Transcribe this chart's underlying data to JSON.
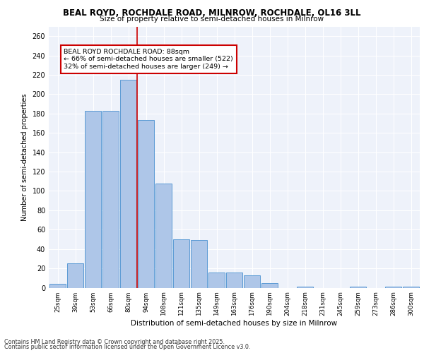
{
  "title1": "BEAL ROYD, ROCHDALE ROAD, MILNROW, ROCHDALE, OL16 3LL",
  "title2": "Size of property relative to semi-detached houses in Milnrow",
  "xlabel": "Distribution of semi-detached houses by size in Milnrow",
  "ylabel": "Number of semi-detached properties",
  "categories": [
    "25sqm",
    "39sqm",
    "53sqm",
    "66sqm",
    "80sqm",
    "94sqm",
    "108sqm",
    "121sqm",
    "135sqm",
    "149sqm",
    "163sqm",
    "176sqm",
    "190sqm",
    "204sqm",
    "218sqm",
    "231sqm",
    "245sqm",
    "259sqm",
    "273sqm",
    "286sqm",
    "300sqm"
  ],
  "values": [
    4,
    25,
    183,
    183,
    215,
    173,
    108,
    50,
    49,
    16,
    16,
    13,
    5,
    0,
    1,
    0,
    0,
    1,
    0,
    1,
    1
  ],
  "bar_color": "#aec6e8",
  "bar_edge_color": "#5b9bd5",
  "vline_color": "#cc0000",
  "annotation_box_color": "#cc0000",
  "annotation_title": "BEAL ROYD ROCHDALE ROAD: 88sqm",
  "annotation_line1": "← 66% of semi-detached houses are smaller (522)",
  "annotation_line2": "32% of semi-detached houses are larger (249) →",
  "vline_x": 4.5,
  "ylim": [
    0,
    270
  ],
  "yticks": [
    0,
    20,
    40,
    60,
    80,
    100,
    120,
    140,
    160,
    180,
    200,
    220,
    240,
    260
  ],
  "background_color": "#eef2fa",
  "footer1": "Contains HM Land Registry data © Crown copyright and database right 2025.",
  "footer2": "Contains public sector information licensed under the Open Government Licence v3.0."
}
